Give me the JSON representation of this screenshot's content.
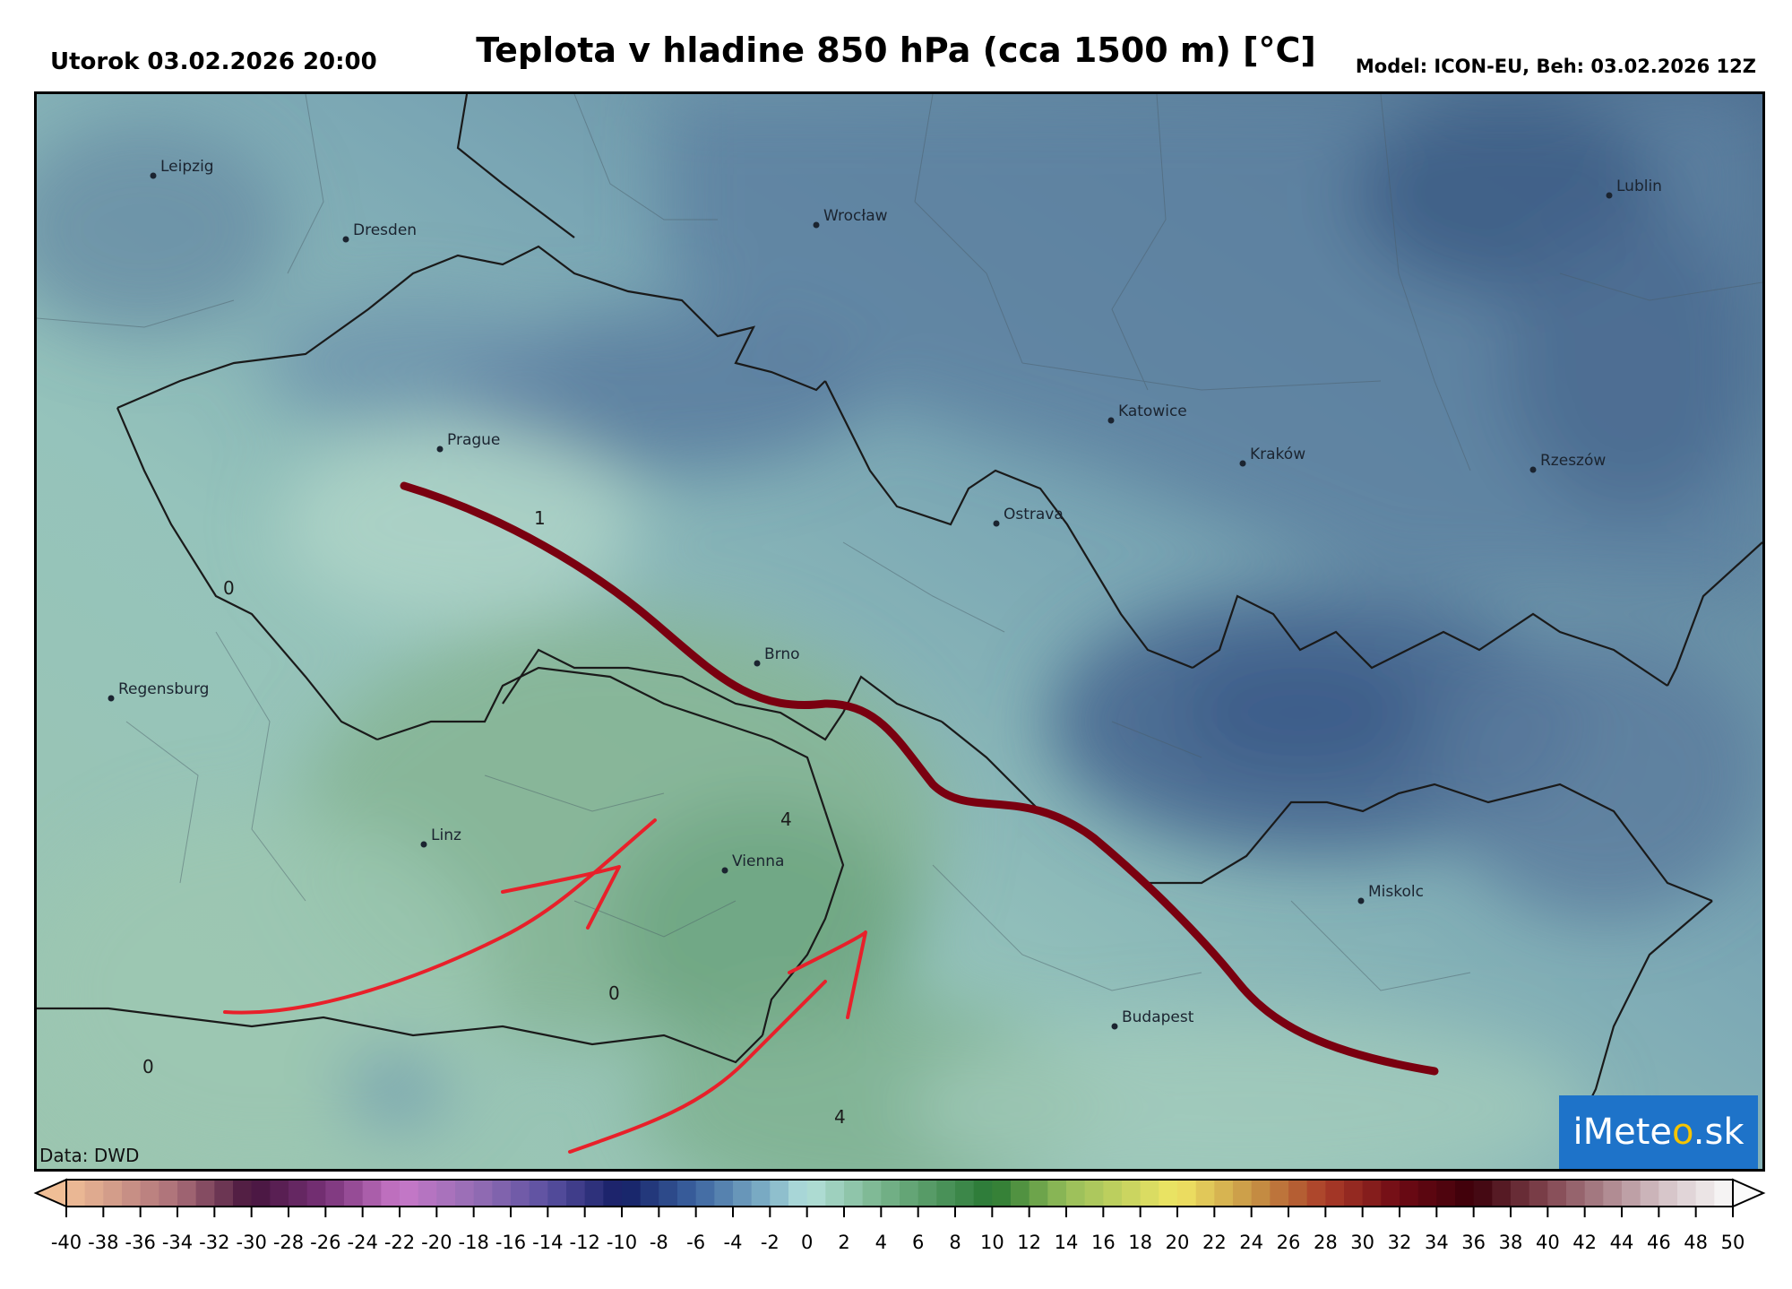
{
  "header": {
    "date": "Utorok 03.02.2026 20:00",
    "title": "Teplota v hladine 850 hPa (cca 1500 m) [°C]",
    "model": "Model: ICON-EU, Beh: 03.02.2026 12Z"
  },
  "credit": "Data: DWD",
  "logo": {
    "text_a": "iMete",
    "text_b": "o",
    "text_c": ".sk",
    "sun_color": "#f5c400",
    "bg": "#1e73c9"
  },
  "cities": [
    {
      "name": "Leipzig"
    },
    {
      "name": "Dresden"
    },
    {
      "name": "Wrocław"
    },
    {
      "name": "Lublin"
    },
    {
      "name": "Prague"
    },
    {
      "name": "Katowice"
    },
    {
      "name": "Kraków"
    },
    {
      "name": "Rzeszów"
    },
    {
      "name": "Ostrava"
    },
    {
      "name": "Brno"
    },
    {
      "name": "Regensburg"
    },
    {
      "name": "Linz"
    },
    {
      "name": "Vienna"
    },
    {
      "name": "Miskolc"
    },
    {
      "name": "Budapest"
    }
  ],
  "contour_labels": [
    "1",
    "0",
    "4",
    "0",
    "0",
    "4"
  ],
  "colorbar": {
    "min": -40,
    "max": 50,
    "step": 2,
    "tick_labels": [
      "-40",
      "-38",
      "-36",
      "-34",
      "-32",
      "-30",
      "-28",
      "-26",
      "-24",
      "-22",
      "-20",
      "-18",
      "-16",
      "-14",
      "-12",
      "-10",
      "-8",
      "-6",
      "-4",
      "-2",
      "0",
      "2",
      "4",
      "6",
      "8",
      "10",
      "12",
      "14",
      "16",
      "18",
      "20",
      "22",
      "24",
      "26",
      "28",
      "30",
      "32",
      "34",
      "36",
      "38",
      "40",
      "42",
      "44",
      "46",
      "48",
      "50"
    ]
  },
  "annotations": {
    "front_color": "#7a0010",
    "arrow_color": "#e8202a"
  }
}
